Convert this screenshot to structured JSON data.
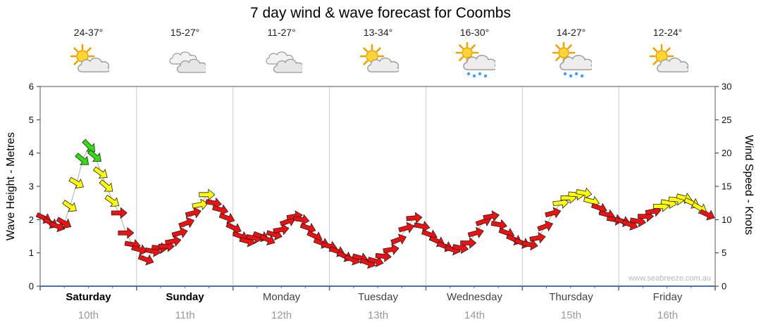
{
  "title": "7 day wind & wave forecast for Coombs",
  "watermark": "www.seabreeze.com.au",
  "days": [
    {
      "name": "Saturday",
      "date": "10th",
      "temp_range": "24-37°",
      "icon": "partly-cloudy",
      "weekend": true
    },
    {
      "name": "Sunday",
      "date": "11th",
      "temp_range": "15-27°",
      "icon": "cloudy",
      "weekend": true
    },
    {
      "name": "Monday",
      "date": "12th",
      "temp_range": "11-27°",
      "icon": "cloudy",
      "weekend": false
    },
    {
      "name": "Tuesday",
      "date": "13th",
      "temp_range": "13-34°",
      "icon": "partly-cloudy",
      "weekend": false
    },
    {
      "name": "Wednesday",
      "date": "14th",
      "temp_range": "16-30°",
      "icon": "partly-cloudy-showers",
      "weekend": false
    },
    {
      "name": "Thursday",
      "date": "15th",
      "temp_range": "14-27°",
      "icon": "partly-cloudy-showers",
      "weekend": false
    },
    {
      "name": "Friday",
      "date": "16th",
      "temp_range": "12-24°",
      "icon": "partly-cloudy",
      "weekend": false
    }
  ],
  "axes": {
    "left_label": "Wave Height - Metres",
    "right_label": "Wind Speed - Knots",
    "left_ticks": [
      0,
      1,
      2,
      3,
      4,
      5,
      6
    ],
    "right_ticks": [
      0,
      5,
      10,
      15,
      20,
      25,
      30
    ]
  },
  "colors": {
    "r": "#ee1111",
    "y": "#ffff00",
    "g": "#33dd11",
    "arrow_outline": "#222222",
    "line": "#aaaaaa",
    "grid": "#cccccc",
    "border": "#555555",
    "bottom_axis": "#4a6fb5"
  },
  "chart_data": {
    "type": "line",
    "title": "7 day wind & wave forecast for Coombs",
    "ylabel_left": "Wave Height - Metres",
    "ylabel_right": "Wind Speed - Knots",
    "ylim_left": [
      0,
      6
    ],
    "ylim_right": [
      0,
      30
    ],
    "x_axis": "days, 0 = start of Saturday 10th, 7 = end of Friday 16th",
    "knots_per_metre_axis_ratio": 5,
    "point_format": [
      "x_day",
      "wave_height_m",
      "wind_dir_deg_0_is_right_cw",
      "wind_color r|y|g"
    ],
    "points": [
      [
        0.04,
        2.05,
        25,
        "r"
      ],
      [
        0.11,
        1.9,
        30,
        "r"
      ],
      [
        0.18,
        1.8,
        20,
        "r"
      ],
      [
        0.25,
        1.9,
        30,
        "r"
      ],
      [
        0.31,
        2.4,
        35,
        "y"
      ],
      [
        0.38,
        3.1,
        30,
        "y"
      ],
      [
        0.44,
        3.8,
        40,
        "g"
      ],
      [
        0.51,
        4.2,
        45,
        "g"
      ],
      [
        0.57,
        3.9,
        40,
        "g"
      ],
      [
        0.63,
        3.4,
        35,
        "y"
      ],
      [
        0.69,
        3.0,
        40,
        "y"
      ],
      [
        0.75,
        2.55,
        35,
        "y"
      ],
      [
        0.82,
        2.2,
        0,
        "r"
      ],
      [
        0.89,
        1.6,
        0,
        "r"
      ],
      [
        0.96,
        1.25,
        10,
        "r"
      ],
      [
        1.03,
        1.1,
        15,
        "r"
      ],
      [
        1.1,
        0.8,
        20,
        "r"
      ],
      [
        1.17,
        1.05,
        10,
        "r"
      ],
      [
        1.24,
        1.15,
        5,
        "r"
      ],
      [
        1.31,
        1.2,
        0,
        "r"
      ],
      [
        1.38,
        1.35,
        -10,
        "r"
      ],
      [
        1.45,
        1.6,
        -15,
        "r"
      ],
      [
        1.52,
        1.9,
        -20,
        "r"
      ],
      [
        1.59,
        2.2,
        -15,
        "r"
      ],
      [
        1.66,
        2.45,
        -10,
        "y"
      ],
      [
        1.73,
        2.75,
        0,
        "y"
      ],
      [
        1.8,
        2.5,
        10,
        "r"
      ],
      [
        1.87,
        2.3,
        15,
        "r"
      ],
      [
        1.94,
        2.05,
        20,
        "r"
      ],
      [
        2.01,
        1.75,
        25,
        "r"
      ],
      [
        2.08,
        1.5,
        20,
        "r"
      ],
      [
        2.15,
        1.35,
        15,
        "r"
      ],
      [
        2.22,
        1.45,
        10,
        "r"
      ],
      [
        2.29,
        1.5,
        20,
        "r"
      ],
      [
        2.36,
        1.4,
        25,
        "r"
      ],
      [
        2.43,
        1.55,
        15,
        "r"
      ],
      [
        2.5,
        1.7,
        -10,
        "r"
      ],
      [
        2.57,
        1.95,
        -20,
        "r"
      ],
      [
        2.64,
        2.1,
        -10,
        "r"
      ],
      [
        2.71,
        2.0,
        10,
        "r"
      ],
      [
        2.78,
        1.75,
        20,
        "r"
      ],
      [
        2.85,
        1.5,
        25,
        "r"
      ],
      [
        2.92,
        1.3,
        20,
        "r"
      ],
      [
        3.0,
        1.2,
        15,
        "r"
      ],
      [
        3.08,
        1.05,
        20,
        "r"
      ],
      [
        3.16,
        0.9,
        25,
        "r"
      ],
      [
        3.24,
        0.8,
        20,
        "r"
      ],
      [
        3.32,
        0.85,
        15,
        "r"
      ],
      [
        3.4,
        0.7,
        20,
        "r"
      ],
      [
        3.48,
        0.75,
        15,
        "r"
      ],
      [
        3.56,
        0.9,
        5,
        "r"
      ],
      [
        3.64,
        1.1,
        -10,
        "r"
      ],
      [
        3.72,
        1.4,
        -20,
        "r"
      ],
      [
        3.8,
        1.75,
        -15,
        "r"
      ],
      [
        3.88,
        2.05,
        -5,
        "r"
      ],
      [
        3.96,
        1.8,
        10,
        "r"
      ],
      [
        4.04,
        1.55,
        20,
        "r"
      ],
      [
        4.12,
        1.35,
        25,
        "r"
      ],
      [
        4.2,
        1.2,
        20,
        "r"
      ],
      [
        4.28,
        1.1,
        15,
        "r"
      ],
      [
        4.36,
        1.15,
        10,
        "r"
      ],
      [
        4.44,
        1.3,
        0,
        "r"
      ],
      [
        4.52,
        1.6,
        -15,
        "r"
      ],
      [
        4.6,
        1.95,
        -20,
        "r"
      ],
      [
        4.68,
        2.1,
        -10,
        "r"
      ],
      [
        4.76,
        1.85,
        10,
        "r"
      ],
      [
        4.84,
        1.6,
        20,
        "r"
      ],
      [
        4.92,
        1.4,
        25,
        "r"
      ],
      [
        5.0,
        1.3,
        20,
        "r"
      ],
      [
        5.08,
        1.25,
        10,
        "r"
      ],
      [
        5.16,
        1.45,
        -10,
        "r"
      ],
      [
        5.24,
        1.8,
        -20,
        "r"
      ],
      [
        5.32,
        2.2,
        -15,
        "r"
      ],
      [
        5.4,
        2.5,
        -5,
        "y"
      ],
      [
        5.48,
        2.65,
        0,
        "y"
      ],
      [
        5.56,
        2.75,
        5,
        "y"
      ],
      [
        5.64,
        2.8,
        10,
        "y"
      ],
      [
        5.72,
        2.55,
        15,
        "y"
      ],
      [
        5.8,
        2.35,
        20,
        "r"
      ],
      [
        5.88,
        2.15,
        15,
        "r"
      ],
      [
        5.96,
        2.0,
        10,
        "r"
      ],
      [
        6.04,
        1.95,
        15,
        "r"
      ],
      [
        6.12,
        1.85,
        20,
        "r"
      ],
      [
        6.2,
        1.95,
        10,
        "r"
      ],
      [
        6.28,
        2.1,
        0,
        "r"
      ],
      [
        6.36,
        2.25,
        -10,
        "r"
      ],
      [
        6.44,
        2.4,
        0,
        "y"
      ],
      [
        6.52,
        2.5,
        10,
        "y"
      ],
      [
        6.6,
        2.6,
        5,
        "y"
      ],
      [
        6.68,
        2.65,
        15,
        "y"
      ],
      [
        6.76,
        2.5,
        25,
        "y"
      ],
      [
        6.84,
        2.35,
        30,
        "y"
      ],
      [
        6.92,
        2.15,
        25,
        "r"
      ]
    ]
  }
}
